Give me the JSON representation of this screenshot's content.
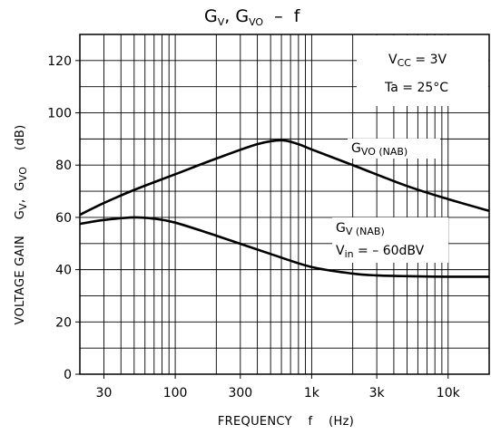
{
  "chart_data": {
    "type": "line",
    "title": {
      "main": "G",
      "sub1": "V",
      "sep": ", G",
      "sub2": "VO",
      "suffix": "  –  f"
    },
    "xlabel": "FREQUENCY    f    (Hz)",
    "ylabel": "VOLTAGE GAIN    G",
    "ylabel_sub1": "V",
    "ylabel_sep": ",  G",
    "ylabel_sub2": "VO",
    "ylabel_unit": "    (dB)",
    "x_scale": "log",
    "xlim": [
      20,
      20000
    ],
    "ylim": [
      0,
      130
    ],
    "x_ticks": [
      {
        "value": 30,
        "label": "30"
      },
      {
        "value": 100,
        "label": "100"
      },
      {
        "value": 300,
        "label": "300"
      },
      {
        "value": 1000,
        "label": "1k"
      },
      {
        "value": 3000,
        "label": "3k"
      },
      {
        "value": 10000,
        "label": "10k"
      }
    ],
    "y_ticks": [
      0,
      20,
      40,
      60,
      80,
      100,
      120
    ],
    "grid": true,
    "conditions": [
      {
        "main": "V",
        "sub": "CC",
        "rest": " = 3V"
      },
      {
        "main": "Ta = 25°C",
        "sub": "",
        "rest": ""
      }
    ],
    "series": [
      {
        "label_main": "G",
        "label_sub": "VO (NAB)",
        "x": [
          20,
          30,
          50,
          100,
          200,
          400,
          600,
          800,
          1000,
          2000,
          5000,
          10000,
          20000
        ],
        "y": [
          61,
          65.5,
          70.5,
          76.5,
          82.5,
          88,
          89.5,
          88,
          86,
          80,
          72,
          67,
          62.5
        ]
      },
      {
        "label_main": "G",
        "label_sub": "V (NAB)",
        "label2_main": "V",
        "label2_sub": "in",
        "label2_rest": " = – 60dBV",
        "x": [
          20,
          30,
          50,
          70,
          100,
          200,
          500,
          1000,
          2000,
          3000,
          5000,
          10000,
          20000
        ],
        "y": [
          57.5,
          59,
          60,
          59.5,
          58,
          53,
          46,
          41,
          38.5,
          37.8,
          37.5,
          37.3,
          37.3
        ]
      }
    ]
  }
}
